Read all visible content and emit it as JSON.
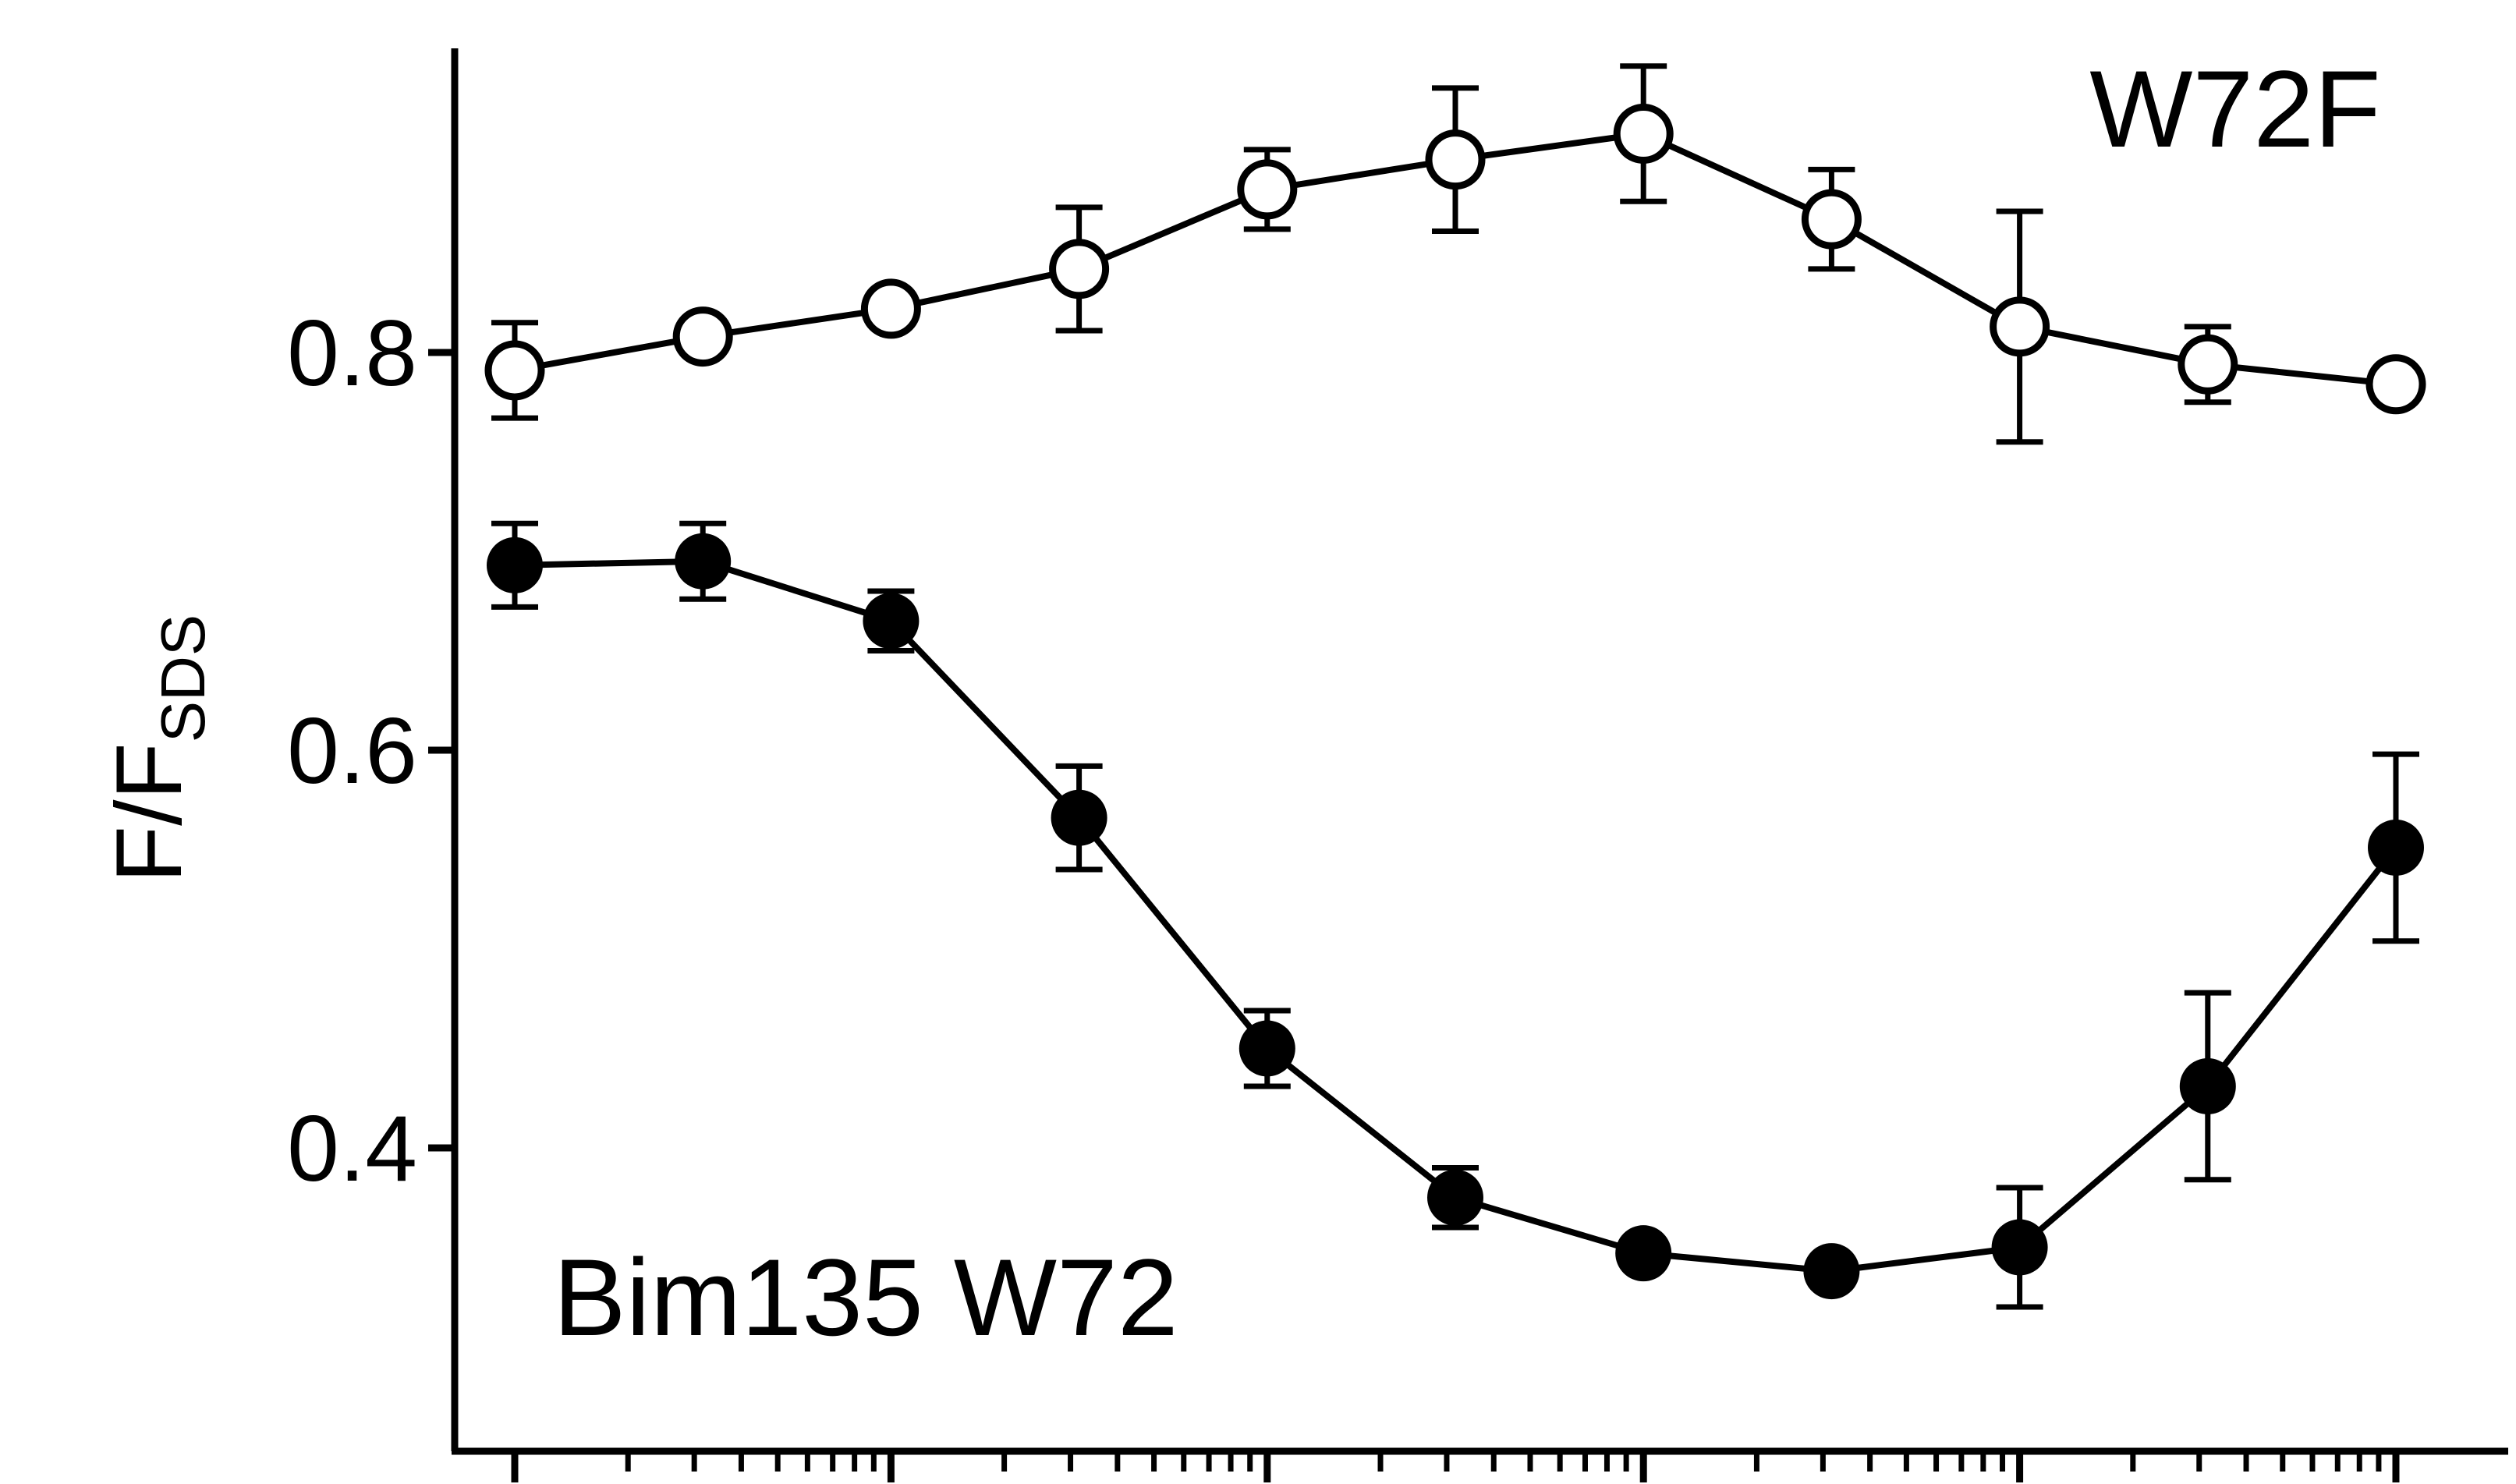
{
  "chart_data": {
    "type": "line",
    "x": [
      1,
      2,
      3,
      4,
      5,
      6,
      7,
      8,
      9,
      10,
      11
    ],
    "xscale": "log",
    "xlabel": "",
    "ylabel": "F/F",
    "ylabel_subscript": "SDS",
    "ytick_labels": [
      "0.4",
      "0.6",
      "0.8"
    ],
    "yticks": [
      0.4,
      0.6,
      0.8
    ],
    "ylim": [
      0.26,
      0.96
    ],
    "grid": false,
    "legend": "none",
    "series": [
      {
        "name": "W72F",
        "marker": "open-circle",
        "y": [
          0.791,
          0.808,
          0.822,
          0.842,
          0.882,
          0.897,
          0.91,
          0.867,
          0.813,
          0.794,
          0.784
        ],
        "err": [
          0.024,
          0.0,
          0.0,
          0.031,
          0.02,
          0.036,
          0.034,
          0.025,
          0.058,
          0.019,
          0.0
        ]
      },
      {
        "name": "Bim135 W72",
        "marker": "filled-circle",
        "y": [
          0.693,
          0.695,
          0.665,
          0.566,
          0.45,
          0.375,
          0.347,
          0.338,
          0.35,
          0.431,
          0.551
        ],
        "err": [
          0.021,
          0.019,
          0.015,
          0.026,
          0.019,
          0.015,
          0.0,
          0.0,
          0.03,
          0.047,
          0.047
        ]
      }
    ],
    "annotations": [
      "W72F",
      "Bim135 W72"
    ],
    "colors": {
      "ink": "#000000",
      "background": "#ffffff"
    }
  }
}
